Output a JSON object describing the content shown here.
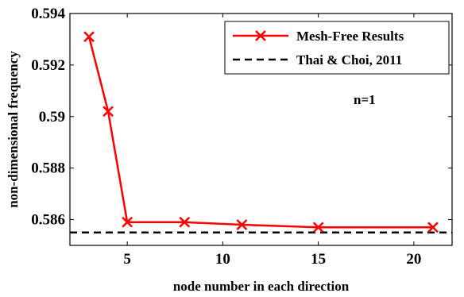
{
  "chart_data": {
    "type": "line",
    "xlabel": "node number in each direction",
    "ylabel": "non-dimensional frequency",
    "xlim": [
      2,
      22
    ],
    "ylim": [
      0.585,
      0.594
    ],
    "xticks": [
      5,
      10,
      15,
      20
    ],
    "yticks": [
      0.586,
      0.588,
      0.59,
      0.592,
      0.594
    ],
    "ytick_labels": [
      "0.586",
      "0.588",
      "0.59",
      "0.592",
      "0.594"
    ],
    "xtick_labels": [
      "5",
      "10",
      "15",
      "20"
    ],
    "series": [
      {
        "name": "Mesh-Free Results",
        "color": "#ff0000",
        "marker": "x",
        "x": [
          3,
          4,
          5,
          8,
          11,
          15,
          21
        ],
        "y": [
          0.5931,
          0.5902,
          0.5859,
          0.5859,
          0.5858,
          0.5857,
          0.5857
        ]
      },
      {
        "name": "Thai & Choi, 2011",
        "color": "#000000",
        "style": "dashed",
        "y": 0.5855
      }
    ],
    "annotation": "n=1",
    "legend_position": "top-right",
    "grid": false
  }
}
